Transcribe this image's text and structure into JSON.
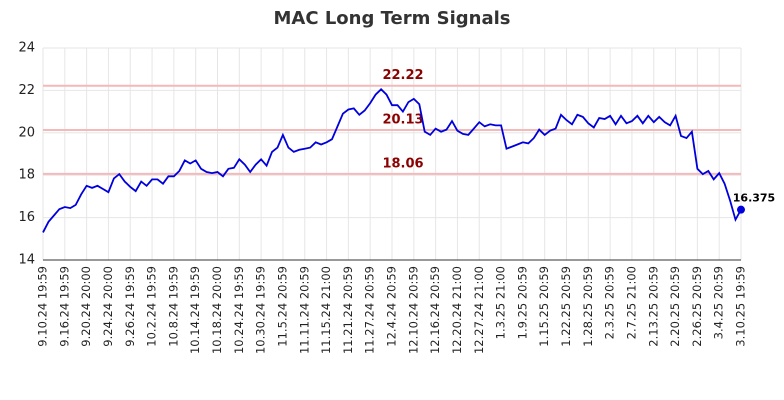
{
  "chart_data": {
    "type": "line",
    "title": "MAC Long Term Signals",
    "categories": [
      "9.10.24 19:59",
      null,
      null,
      null,
      "9.16.24 19:59",
      null,
      null,
      null,
      "9.20.24 20:00",
      null,
      null,
      null,
      "9.24.24 20:00",
      null,
      null,
      null,
      "9.26.24 19:59",
      null,
      null,
      null,
      "10.2.24 19:59",
      null,
      null,
      null,
      "10.8.24 19:59",
      null,
      null,
      null,
      "10.14.24 19:59",
      null,
      null,
      null,
      "10.18.24 20:00",
      null,
      null,
      null,
      "10.24.24 19:59",
      null,
      null,
      null,
      "10.30.24 19:59",
      null,
      null,
      null,
      "11.5.24 20:59",
      null,
      null,
      null,
      "11.11.24 20:59",
      null,
      null,
      null,
      "11.15.24 21:00",
      null,
      null,
      null,
      "11.21.24 20:59",
      null,
      null,
      null,
      "11.27.24 20:59",
      null,
      null,
      null,
      "12.4.24 20:59",
      null,
      null,
      null,
      "12.10.24 20:59",
      null,
      null,
      null,
      "12.16.24 20:59",
      null,
      null,
      null,
      "12.20.24 21:00",
      null,
      null,
      null,
      "12.27.24 21:00",
      null,
      null,
      null,
      "1.3.25 21:00",
      null,
      null,
      null,
      "1.9.25 20:59",
      null,
      null,
      null,
      "1.15.25 20:59",
      null,
      null,
      null,
      "1.22.25 20:59",
      null,
      null,
      null,
      "1.28.25 20:59",
      null,
      null,
      null,
      "2.3.25 20:59",
      null,
      null,
      null,
      "2.7.25 21:00",
      null,
      null,
      null,
      "2.13.25 20:59",
      null,
      null,
      null,
      "2.20.25 20:59",
      null,
      null,
      null,
      "2.26.25 20:59",
      null,
      null,
      null,
      "3.4.25 20:59",
      null,
      null,
      null,
      "3.10.25 19:59"
    ],
    "values": [
      15.3,
      15.8,
      16.1,
      16.4,
      16.5,
      16.45,
      16.6,
      17.1,
      17.5,
      17.4,
      17.5,
      17.35,
      17.2,
      17.85,
      18.05,
      17.7,
      17.45,
      17.25,
      17.7,
      17.5,
      17.8,
      17.8,
      17.6,
      17.95,
      17.95,
      18.2,
      18.7,
      18.55,
      18.7,
      18.3,
      18.15,
      18.1,
      18.15,
      17.95,
      18.3,
      18.35,
      18.75,
      18.5,
      18.15,
      18.5,
      18.75,
      18.45,
      19.1,
      19.3,
      19.9,
      19.3,
      19.1,
      19.2,
      19.25,
      19.3,
      19.55,
      19.45,
      19.55,
      19.7,
      20.3,
      20.9,
      21.1,
      21.15,
      20.85,
      21.05,
      21.4,
      21.8,
      22.05,
      21.8,
      21.3,
      21.3,
      21.0,
      21.45,
      21.6,
      21.35,
      20.05,
      19.9,
      20.2,
      20.05,
      20.15,
      20.55,
      20.1,
      19.95,
      19.9,
      20.2,
      20.5,
      20.3,
      20.4,
      20.35,
      20.35,
      19.25,
      19.35,
      19.45,
      19.55,
      19.5,
      19.75,
      20.15,
      19.9,
      20.1,
      20.2,
      20.85,
      20.6,
      20.4,
      20.85,
      20.75,
      20.45,
      20.25,
      20.7,
      20.65,
      20.8,
      20.4,
      20.8,
      20.45,
      20.55,
      20.8,
      20.45,
      20.8,
      20.5,
      20.75,
      20.5,
      20.35,
      20.8,
      19.85,
      19.75,
      20.05,
      18.3,
      18.05,
      18.2,
      17.8,
      18.1,
      17.6,
      16.8,
      15.9,
      16.375
    ],
    "color": "#0000dd",
    "levels": [
      22.22,
      20.13,
      18.06
    ],
    "level_color": "#f4b9b9",
    "level_label_color": "#8b0000",
    "ylim": [
      14,
      24
    ],
    "yticks": [
      14,
      16,
      18,
      20,
      22,
      24
    ],
    "grid": true
  }
}
